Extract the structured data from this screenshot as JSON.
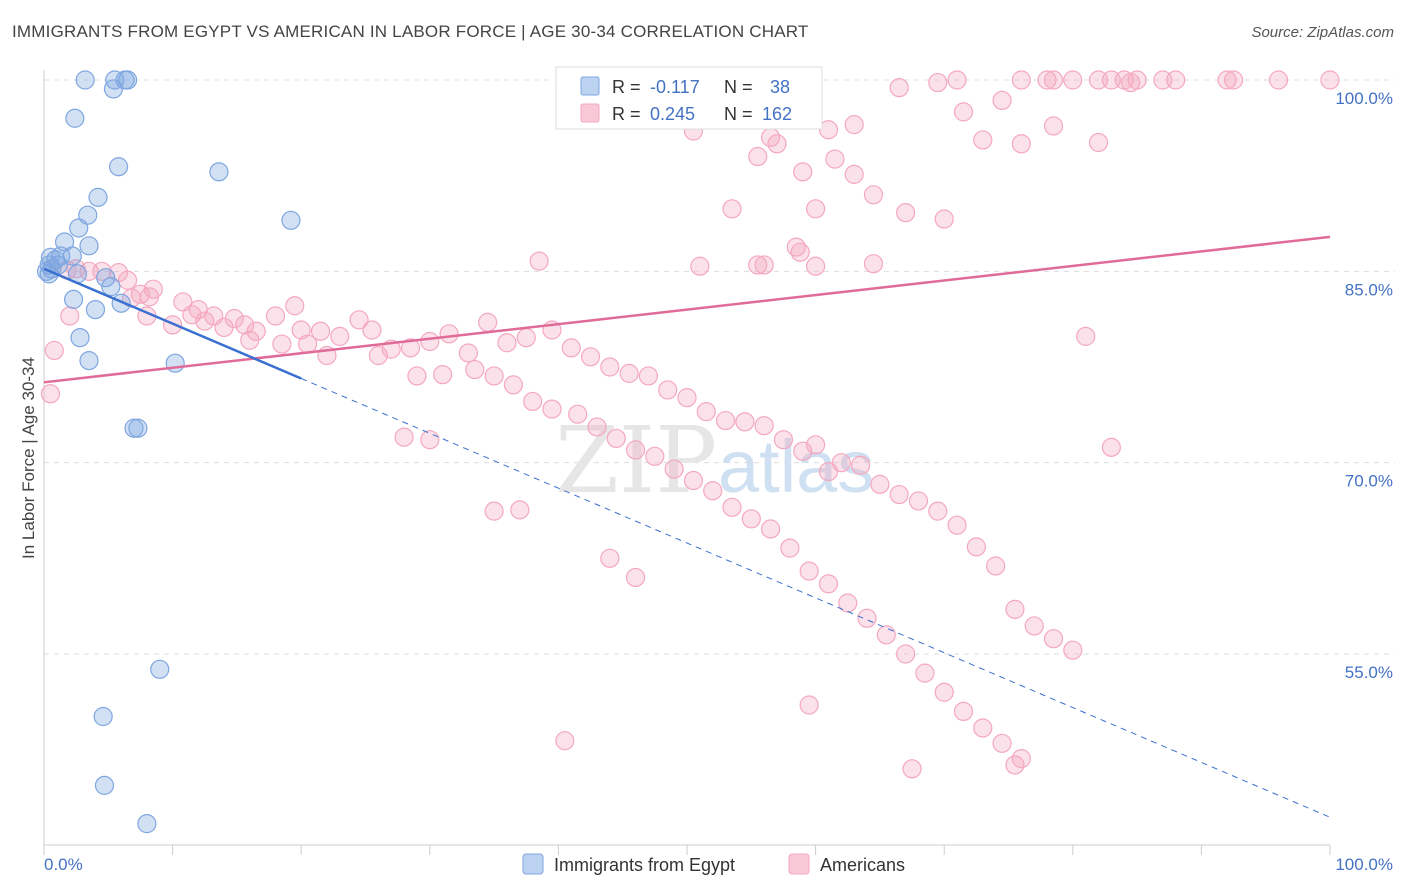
{
  "title": "IMMIGRANTS FROM EGYPT VS AMERICAN IN LABOR FORCE | AGE 30-34 CORRELATION CHART",
  "source": "Source: ZipAtlas.com",
  "watermark": {
    "zip": "ZIP",
    "atlas": "atlas"
  },
  "chart_data": {
    "type": "scatter",
    "title": "IMMIGRANTS FROM EGYPT VS AMERICAN IN LABOR FORCE | AGE 30-34 CORRELATION CHART",
    "xlabel": "",
    "ylabel": "In Labor Force | Age 30-34",
    "xlim": [
      0,
      100
    ],
    "ylim": [
      42,
      102
    ],
    "x_tick_labels": [
      "0.0%",
      "100.0%"
    ],
    "y_ticks": [
      100,
      85,
      70,
      55
    ],
    "y_tick_labels": [
      "100.0%",
      "85.0%",
      "70.0%",
      "55.0%"
    ],
    "grid": true,
    "legend_position": "top-center",
    "series": [
      {
        "name": "Immigrants from Egypt",
        "color": "#7ea6e0",
        "line_color": "#3a70d0",
        "R": "-0.117",
        "N": "38",
        "trend": {
          "x0": 0,
          "y0": 85.2,
          "x1": 100,
          "y1": 42.2,
          "solid_until_x": 20
        },
        "points": [
          [
            3.2,
            100
          ],
          [
            5.5,
            100
          ],
          [
            6.3,
            100
          ],
          [
            6.5,
            100
          ],
          [
            5.4,
            99.3
          ],
          [
            2.4,
            97
          ],
          [
            5.8,
            93.2
          ],
          [
            13.6,
            92.8
          ],
          [
            4.2,
            90.8
          ],
          [
            3.4,
            89.4
          ],
          [
            19.2,
            89
          ],
          [
            2.7,
            88.4
          ],
          [
            1.6,
            87.3
          ],
          [
            3.5,
            87
          ],
          [
            0.5,
            86.1
          ],
          [
            1.3,
            86.2
          ],
          [
            2.2,
            86.2
          ],
          [
            0.4,
            85.5
          ],
          [
            1.1,
            85.5
          ],
          [
            0.2,
            85
          ],
          [
            0.6,
            85.2
          ],
          [
            2.6,
            84.8
          ],
          [
            4.8,
            84.5
          ],
          [
            5.2,
            83.8
          ],
          [
            2.3,
            82.8
          ],
          [
            6,
            82.5
          ],
          [
            4,
            82
          ],
          [
            2.8,
            79.8
          ],
          [
            3.5,
            78
          ],
          [
            10.2,
            77.8
          ],
          [
            7,
            72.7
          ],
          [
            7.3,
            72.7
          ],
          [
            9,
            53.8
          ],
          [
            4.6,
            50.1
          ],
          [
            4.7,
            44.7
          ],
          [
            8,
            41.7
          ],
          [
            0.4,
            84.8
          ],
          [
            0.9,
            85.9
          ]
        ]
      },
      {
        "name": "Americans",
        "color": "#f4a8c0",
        "line_color": "#e06b98",
        "R": "0.245",
        "N": "162",
        "trend": {
          "x0": 0,
          "y0": 76.3,
          "x1": 100,
          "y1": 87.7
        },
        "points": [
          [
            54,
            100
          ],
          [
            58,
            100
          ],
          [
            71,
            100
          ],
          [
            76,
            100
          ],
          [
            78,
            100
          ],
          [
            78.5,
            100
          ],
          [
            80,
            100
          ],
          [
            82,
            100
          ],
          [
            83,
            100
          ],
          [
            84,
            100
          ],
          [
            85,
            100
          ],
          [
            87,
            100
          ],
          [
            88,
            100
          ],
          [
            92,
            100
          ],
          [
            92.5,
            100
          ],
          [
            96,
            100
          ],
          [
            100,
            100
          ],
          [
            54.5,
            99.6
          ],
          [
            84.5,
            99.8
          ],
          [
            66.5,
            99.4
          ],
          [
            69.5,
            99.8
          ],
          [
            74.5,
            98.4
          ],
          [
            71.5,
            97.5
          ],
          [
            58.5,
            97
          ],
          [
            63,
            96.5
          ],
          [
            78.5,
            96.4
          ],
          [
            50.5,
            96
          ],
          [
            61,
            96.1
          ],
          [
            73,
            95.3
          ],
          [
            56.5,
            95.5
          ],
          [
            57,
            95
          ],
          [
            76,
            95
          ],
          [
            82,
            95.1
          ],
          [
            55.5,
            94
          ],
          [
            61.5,
            93.8
          ],
          [
            59,
            92.8
          ],
          [
            63,
            92.6
          ],
          [
            64.5,
            91
          ],
          [
            53.5,
            89.9
          ],
          [
            60,
            89.9
          ],
          [
            67,
            89.6
          ],
          [
            70,
            89.1
          ],
          [
            58.5,
            86.9
          ],
          [
            58.8,
            86.5
          ],
          [
            55.5,
            85.5
          ],
          [
            38.5,
            85.8
          ],
          [
            51,
            85.4
          ],
          [
            64.5,
            85.6
          ],
          [
            56,
            85.5
          ],
          [
            60,
            85.4
          ],
          [
            2.5,
            85.2
          ],
          [
            3.5,
            85
          ],
          [
            4.5,
            85
          ],
          [
            5.8,
            84.9
          ],
          [
            1.8,
            85.1
          ],
          [
            6.5,
            84.3
          ],
          [
            8.5,
            83.6
          ],
          [
            7.5,
            83.2
          ],
          [
            8.2,
            83
          ],
          [
            6.8,
            82.9
          ],
          [
            10.8,
            82.6
          ],
          [
            12,
            82
          ],
          [
            14.8,
            81.3
          ],
          [
            13.2,
            81.5
          ],
          [
            15.6,
            80.8
          ],
          [
            16.5,
            80.3
          ],
          [
            18,
            81.5
          ],
          [
            19.5,
            82.3
          ],
          [
            20,
            80.4
          ],
          [
            21.5,
            80.3
          ],
          [
            23,
            79.9
          ],
          [
            24.5,
            81.2
          ],
          [
            25.5,
            80.4
          ],
          [
            27,
            78.9
          ],
          [
            28.5,
            79
          ],
          [
            30,
            79.5
          ],
          [
            31.5,
            80.1
          ],
          [
            33,
            78.6
          ],
          [
            34.5,
            81
          ],
          [
            36,
            79.4
          ],
          [
            37.5,
            79.8
          ],
          [
            39.5,
            80.4
          ],
          [
            41,
            79
          ],
          [
            42.5,
            78.3
          ],
          [
            44,
            77.5
          ],
          [
            45.5,
            77
          ],
          [
            47,
            76.8
          ],
          [
            48.5,
            75.7
          ],
          [
            50,
            75.1
          ],
          [
            51.5,
            74
          ],
          [
            53,
            73.3
          ],
          [
            54.5,
            73.2
          ],
          [
            56,
            72.9
          ],
          [
            57.5,
            71.8
          ],
          [
            59,
            70.9
          ],
          [
            60,
            71.4
          ],
          [
            61,
            69.3
          ],
          [
            62,
            70
          ],
          [
            63.5,
            69.8
          ],
          [
            65,
            68.3
          ],
          [
            66.5,
            67.5
          ],
          [
            68,
            67
          ],
          [
            69.5,
            66.2
          ],
          [
            71,
            65.1
          ],
          [
            72.5,
            63.4
          ],
          [
            74,
            61.9
          ],
          [
            75.5,
            58.5
          ],
          [
            77,
            57.2
          ],
          [
            78.5,
            56.2
          ],
          [
            80,
            55.3
          ],
          [
            2,
            81.5
          ],
          [
            0.8,
            78.8
          ],
          [
            0.5,
            75.4
          ],
          [
            8,
            81.5
          ],
          [
            10,
            80.8
          ],
          [
            11.5,
            81.6
          ],
          [
            12.5,
            81.1
          ],
          [
            14,
            80.6
          ],
          [
            16,
            79.6
          ],
          [
            18.5,
            79.3
          ],
          [
            20.5,
            79.3
          ],
          [
            22,
            78.4
          ],
          [
            26,
            78.4
          ],
          [
            29,
            76.8
          ],
          [
            31,
            76.9
          ],
          [
            33.5,
            77.3
          ],
          [
            35,
            76.8
          ],
          [
            36.5,
            76.1
          ],
          [
            38,
            74.8
          ],
          [
            39.5,
            74.2
          ],
          [
            41.5,
            73.8
          ],
          [
            43,
            72.8
          ],
          [
            44.5,
            71.9
          ],
          [
            46,
            71
          ],
          [
            47.5,
            70.5
          ],
          [
            49,
            69.5
          ],
          [
            50.5,
            68.6
          ],
          [
            52,
            67.8
          ],
          [
            53.5,
            66.5
          ],
          [
            55,
            65.6
          ],
          [
            56.5,
            64.8
          ],
          [
            58,
            63.3
          ],
          [
            59.5,
            61.5
          ],
          [
            61,
            60.5
          ],
          [
            62.5,
            59
          ],
          [
            64,
            57.8
          ],
          [
            65.5,
            56.5
          ],
          [
            67,
            55
          ],
          [
            68.5,
            53.5
          ],
          [
            70,
            52
          ],
          [
            71.5,
            50.5
          ],
          [
            73,
            49.2
          ],
          [
            74.5,
            48
          ],
          [
            76,
            46.8
          ],
          [
            40.5,
            48.2
          ],
          [
            59.5,
            51
          ],
          [
            67.5,
            46
          ],
          [
            75.5,
            46.3
          ],
          [
            28,
            72
          ],
          [
            30,
            71.8
          ],
          [
            44,
            62.5
          ],
          [
            46,
            61
          ],
          [
            35,
            66.2
          ],
          [
            37,
            66.3
          ],
          [
            83,
            71.2
          ],
          [
            81,
            79.9
          ]
        ]
      }
    ]
  }
}
